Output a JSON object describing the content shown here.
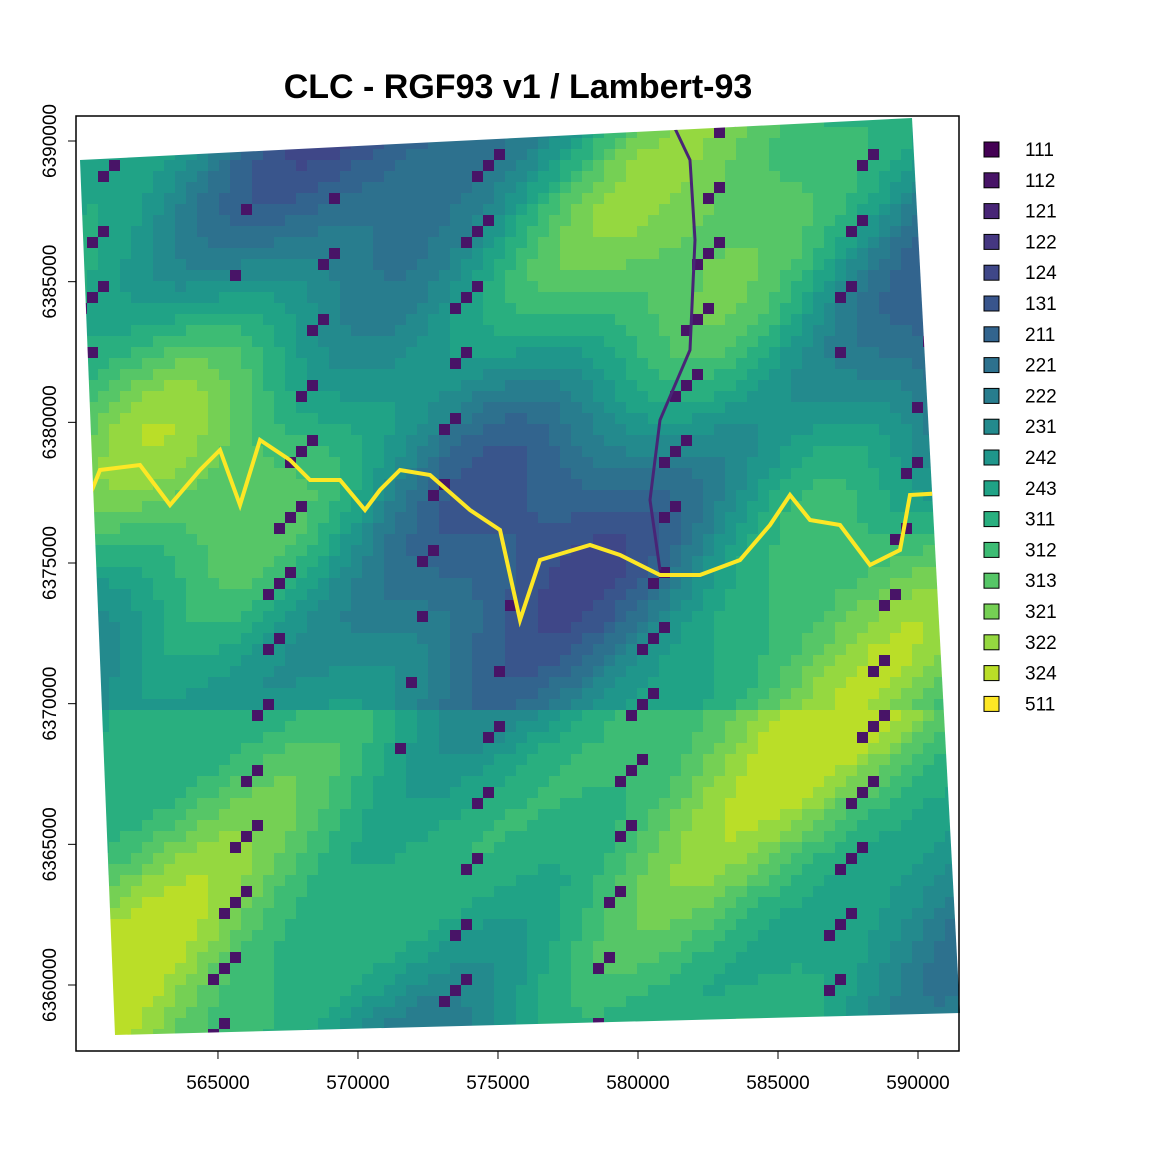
{
  "chart_data": {
    "type": "raster",
    "title": "CLC - RGF93 v1 / Lambert-93",
    "xlim": [
      559930,
      591464
    ],
    "ylim": [
      6357654,
      6390889
    ],
    "xticks": [
      565000,
      570000,
      575000,
      580000,
      585000,
      590000
    ],
    "yticks": [
      6360000,
      6365000,
      6370000,
      6375000,
      6380000,
      6385000,
      6390000
    ],
    "legend": {
      "position": "right",
      "categories": [
        "111",
        "112",
        "121",
        "122",
        "124",
        "131",
        "211",
        "221",
        "222",
        "231",
        "242",
        "243",
        "311",
        "312",
        "313",
        "321",
        "322",
        "324",
        "511"
      ],
      "colors": [
        "#440154",
        "#481467",
        "#482576",
        "#453781",
        "#3F4788",
        "#39558C",
        "#32648E",
        "#2D718E",
        "#287D8E",
        "#238A8D",
        "#1F968B",
        "#20A386",
        "#29AF7F",
        "#3DBC74",
        "#56C667",
        "#75D054",
        "#95D840",
        "#BADE28",
        "#FDE725"
      ]
    }
  }
}
